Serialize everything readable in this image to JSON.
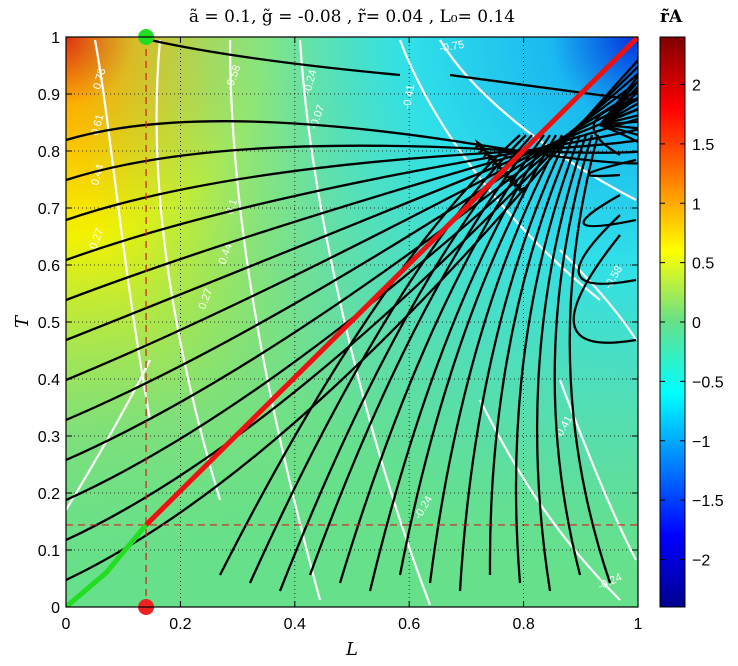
{
  "chart_data": {
    "type": "streamplot-heatmap",
    "title": "ã = 0.1, g̃ = -0.08 , r̃= 0.04 , L₀= 0.14",
    "xlabel": "L",
    "ylabel": "T",
    "xlim": [
      0,
      1
    ],
    "ylim": [
      0,
      1
    ],
    "x_ticks": [
      "0",
      "0.2",
      "0.4",
      "0.6",
      "0.8",
      "1"
    ],
    "y_ticks": [
      "0",
      "0.1",
      "0.2",
      "0.3",
      "0.4",
      "0.5",
      "0.6",
      "0.7",
      "0.8",
      "0.9",
      "1"
    ],
    "grid": true,
    "colorbar": {
      "label": "r̃A",
      "range": [
        -2.4,
        2.4
      ],
      "ticks": [
        "2",
        "1.5",
        "1",
        "0.5",
        "0",
        "−0.5",
        "−1",
        "−1.5",
        "−2"
      ],
      "tick_values": [
        2,
        1.5,
        1,
        0.5,
        0,
        -0.5,
        -1,
        -1.5,
        -2
      ]
    },
    "contour_labels": [
      "0.78",
      "0.61",
      "0.44",
      "0.27",
      "0.1",
      "-0.07",
      "-0.24",
      "-0.41",
      "-0.58",
      "-0.75",
      "-0.24",
      "-0.41",
      "-0.58",
      "0.27",
      "0.44",
      "-0.24"
    ],
    "reference_lines": {
      "L0": 0.14,
      "T0": 0.144
    },
    "markers": [
      {
        "name": "top-marker",
        "x": 0.14,
        "y": 1.0,
        "color": "#22dd22"
      },
      {
        "name": "bottom-marker",
        "x": 0.14,
        "y": 0.0,
        "color": "#ee2222"
      }
    ],
    "curves": {
      "red_line": {
        "color": "#ee1111",
        "points": [
          [
            0.14,
            0.144
          ],
          [
            1.0,
            1.0
          ]
        ]
      },
      "green_curve": {
        "color": "#22dd22",
        "points": [
          [
            0.0,
            0.0
          ],
          [
            0.07,
            0.06
          ],
          [
            0.14,
            0.144
          ]
        ]
      }
    }
  }
}
